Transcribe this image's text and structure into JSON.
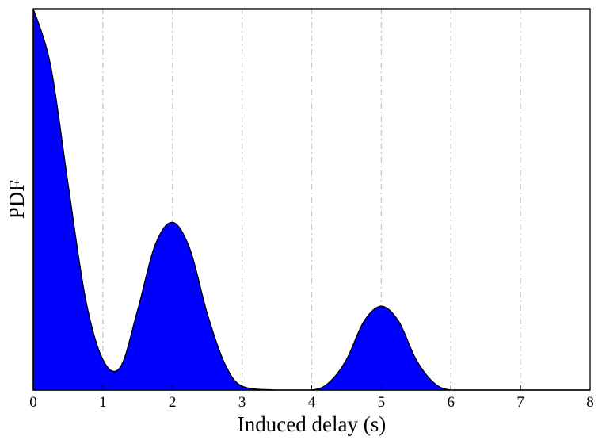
{
  "chart_data": {
    "type": "area",
    "title": "",
    "xlabel": "Induced delay (s)",
    "ylabel": "PDF",
    "xlim": [
      0,
      8
    ],
    "ylim": [
      0,
      1
    ],
    "x_ticks": [
      "0",
      "1",
      "2",
      "3",
      "4",
      "5",
      "6",
      "7",
      "8"
    ],
    "y_ticks": [],
    "grid": "vertical-dashdot",
    "legend": "none",
    "fill_color": "#0000ff",
    "edge_color": "#000000",
    "series": [
      {
        "x": [
          0,
          0.25,
          0.5,
          0.75,
          1.0,
          1.25,
          1.5,
          1.75,
          2.0,
          2.25,
          2.5,
          2.75,
          3.0,
          3.5,
          4.0,
          4.25,
          4.5,
          4.75,
          5.0,
          5.25,
          5.5,
          5.75,
          6.0,
          6.5,
          7.0,
          7.5,
          8.0
        ],
        "values": [
          1.0,
          0.85,
          0.54,
          0.24,
          0.08,
          0.06,
          0.21,
          0.38,
          0.44,
          0.37,
          0.2,
          0.07,
          0.01,
          0.0,
          0.0,
          0.02,
          0.08,
          0.18,
          0.22,
          0.18,
          0.08,
          0.02,
          0.0,
          0.0,
          0.0,
          0.0,
          0.0
        ]
      }
    ]
  }
}
